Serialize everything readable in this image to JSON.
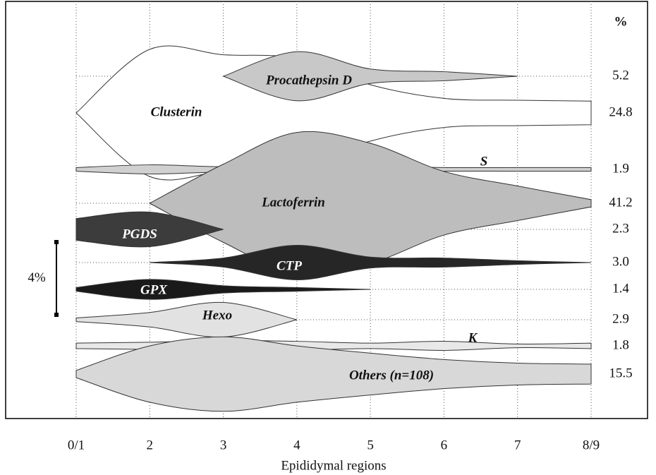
{
  "chart_data": {
    "type": "violin",
    "xlabel": "Epididymal regions",
    "categories": [
      "0/1",
      "2",
      "3",
      "4",
      "5",
      "6",
      "7",
      "8/9"
    ],
    "share_header": "%",
    "scale_bar": {
      "value": 4,
      "label": "4%"
    },
    "grid": true,
    "series": [
      {
        "name": "Clusterin",
        "color": "#ffffff",
        "share": 24.8,
        "values": [
          0,
          7.0,
          6.4,
          6.0,
          3.1,
          1.6,
          1.4,
          1.3
        ]
      },
      {
        "name": "Procathepsin D",
        "color": "#c8c8c8",
        "share": 5.2,
        "values": [
          null,
          null,
          0,
          2.7,
          0.8,
          0.5,
          0,
          null
        ]
      },
      {
        "name": "S",
        "color": "#d0d0d0",
        "share": 1.9,
        "values": [
          0.2,
          0.5,
          0.3,
          0.5,
          0.3,
          0.2,
          0.2,
          0.2
        ]
      },
      {
        "name": "Lactoferrin",
        "color": "#bdbdbd",
        "share": 41.2,
        "values": [
          null,
          0,
          4.3,
          7.8,
          6.6,
          3.5,
          1.9,
          0.4
        ]
      },
      {
        "name": "PGDS",
        "color": "#3c3c3c",
        "share": 2.3,
        "values": [
          1.2,
          1.9,
          0,
          null,
          null,
          null,
          null,
          null
        ]
      },
      {
        "name": "CTP",
        "color": "#262626",
        "share": 3.0,
        "share_label": "3.0",
        "values": [
          null,
          0,
          0.5,
          1.9,
          0.6,
          0.5,
          0.2,
          0
        ]
      },
      {
        "name": "GPX",
        "color": "#1a1a1a",
        "share": 1.4,
        "values": [
          0.2,
          1.1,
          0.4,
          0.2,
          0,
          null,
          null,
          null
        ]
      },
      {
        "name": "Hexo",
        "color": "#e2e2e2",
        "share": 2.9,
        "values": [
          0.2,
          0.8,
          1.9,
          0,
          null,
          null,
          null,
          null
        ]
      },
      {
        "name": "K",
        "color": "#e8e8e8",
        "share": 1.8,
        "values": [
          0.3,
          0.4,
          0.6,
          0.5,
          0.3,
          0.5,
          0.2,
          0.3
        ]
      },
      {
        "name": "Others (n=108)",
        "color": "#d8d8d8",
        "share": 15.5,
        "values": [
          0.4,
          3.1,
          4.1,
          3.1,
          2.3,
          1.6,
          1.2,
          1.1
        ]
      }
    ]
  }
}
